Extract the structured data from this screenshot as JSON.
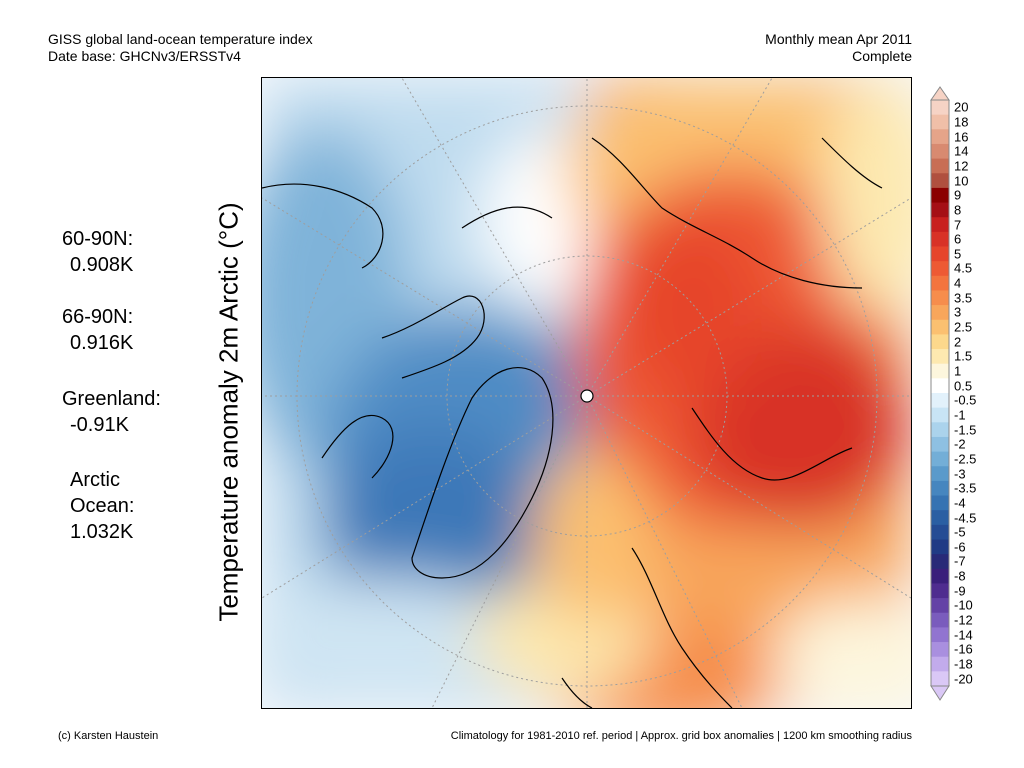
{
  "header": {
    "title": "GISS global land-ocean temperature index",
    "database": "Date base: GHCNv3/ERSSTv4",
    "period": "Monthly mean Apr 2011",
    "status": "Complete"
  },
  "stats": {
    "n60_label": "60-90N:",
    "n60_value": "0.908K",
    "n66_label": "66-90N:",
    "n66_value": "0.916K",
    "greenland_label": "Greenland:",
    "greenland_value": "-0.91K",
    "arctic_label_1": "Arctic",
    "arctic_label_2": "Ocean:",
    "arctic_value": "1.032K"
  },
  "y_axis_label": "Temperature anomaly 2m Arctic (°C)",
  "colorbar": {
    "labels": [
      "20",
      "18",
      "16",
      "14",
      "12",
      "10",
      "9",
      "8",
      "7",
      "6",
      "5",
      "4.5",
      "4",
      "3.5",
      "3",
      "2.5",
      "2",
      "1.5",
      "1",
      "0.5",
      "-0.5",
      "-1",
      "-1.5",
      "-2",
      "-2.5",
      "-3",
      "-3.5",
      "-4",
      "-4.5",
      "-5",
      "-6",
      "-7",
      "-8",
      "-9",
      "-10",
      "-12",
      "-14",
      "-16",
      "-18",
      "-20"
    ],
    "colors": [
      "#f6d3c5",
      "#f0bfa8",
      "#e5a489",
      "#d88a70",
      "#c86e55",
      "#b0503f",
      "#8b0000",
      "#a50f15",
      "#c8201f",
      "#d83227",
      "#e6452c",
      "#ee5a34",
      "#f3743e",
      "#f68d4c",
      "#f8a65b",
      "#fbc070",
      "#fcd88c",
      "#fde9b0",
      "#fdf6dd",
      "#ffffff",
      "#e2f1fb",
      "#c8e4f5",
      "#abd3ec",
      "#8ec0e2",
      "#73aed7",
      "#5a9acb",
      "#4686bf",
      "#3673b2",
      "#2b5fa3",
      "#254c94",
      "#203b85",
      "#282a78",
      "#3a1f7b",
      "#4f2c8f",
      "#6442a6",
      "#7a5cbd",
      "#9174d0",
      "#a98fdf",
      "#c2abec",
      "#dac8f6"
    ]
  },
  "map": {
    "region": "Arctic polar stereographic",
    "anomaly_pattern": "warm Eurasia/Siberia, cold Greenland/Canada"
  },
  "footer": {
    "credit": "(c) Karsten Haustein",
    "note": "Climatology for 1981-2010 ref. period | Approx. grid box anomalies | 1200 km smoothing radius"
  }
}
